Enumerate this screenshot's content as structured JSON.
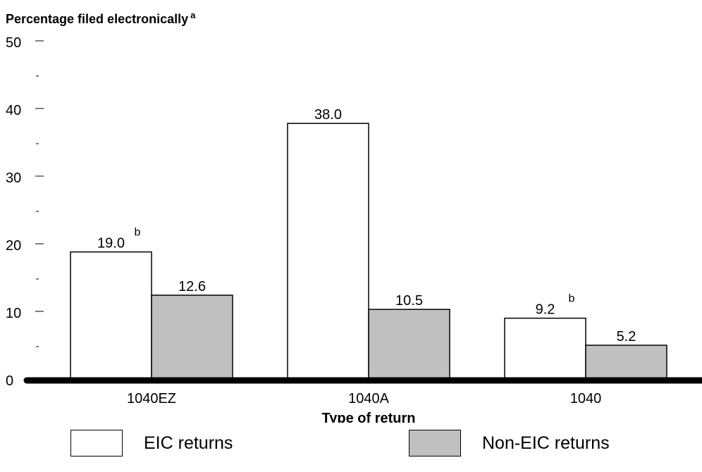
{
  "chart_data": {
    "type": "bar",
    "title": "",
    "ylabel": "Percentage filed electronically",
    "ylabel_note": "a",
    "xlabel": "Type of return",
    "ylim": [
      0,
      50
    ],
    "yticks": [
      "0",
      "10",
      "20",
      "30",
      "40",
      "50"
    ],
    "categories": [
      "1040EZ",
      "1040A",
      "1040"
    ],
    "series": [
      {
        "name": "EIC returns",
        "values": [
          19.0,
          38.0,
          9.2
        ],
        "labels": [
          "19.0",
          "38.0",
          "9.2"
        ],
        "notes": [
          "b",
          "",
          "b"
        ],
        "color": "#ffffff"
      },
      {
        "name": "Non-EIC returns",
        "values": [
          12.6,
          10.5,
          5.2
        ],
        "labels": [
          "12.6",
          "10.5",
          "5.2"
        ],
        "notes": [
          "",
          "",
          ""
        ],
        "color": "#c0c0c0"
      }
    ],
    "grid": false,
    "legend_position": "bottom"
  }
}
